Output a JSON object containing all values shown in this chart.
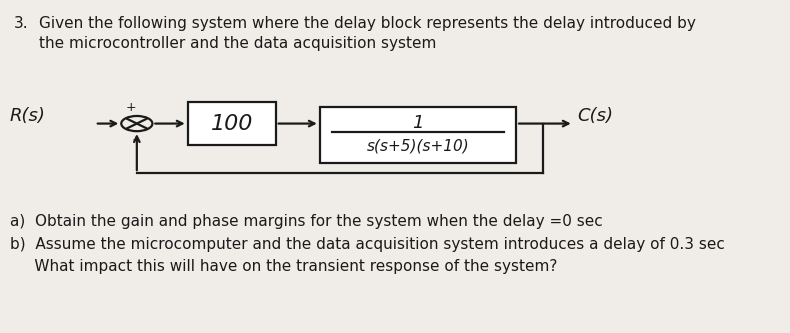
{
  "background_color": "#f0ede8",
  "title_number": "3.",
  "title_line1": "Given the following system where the delay block represents the delay introduced by",
  "title_line2": "the microcontroller and the data acquisition system",
  "R_label": "R(s)",
  "C_label": "C(s)",
  "block1_text": "100",
  "block2_num": "1",
  "block2_den": "s(s+5)(s+10)",
  "part_a": "a)  Obtain the gain and phase margins for the system when the delay =0 sec",
  "part_b1": "b)  Assume the microcomputer and the data acquisition system introduces a delay of 0.3 sec",
  "part_b2": "     What impact this will have on the transient response of the system?",
  "text_fontsize": 11,
  "label_fontsize": 13,
  "block_fontsize": 13,
  "dark": "#1a1a1a",
  "white": "#ffffff",
  "lw": 1.6
}
